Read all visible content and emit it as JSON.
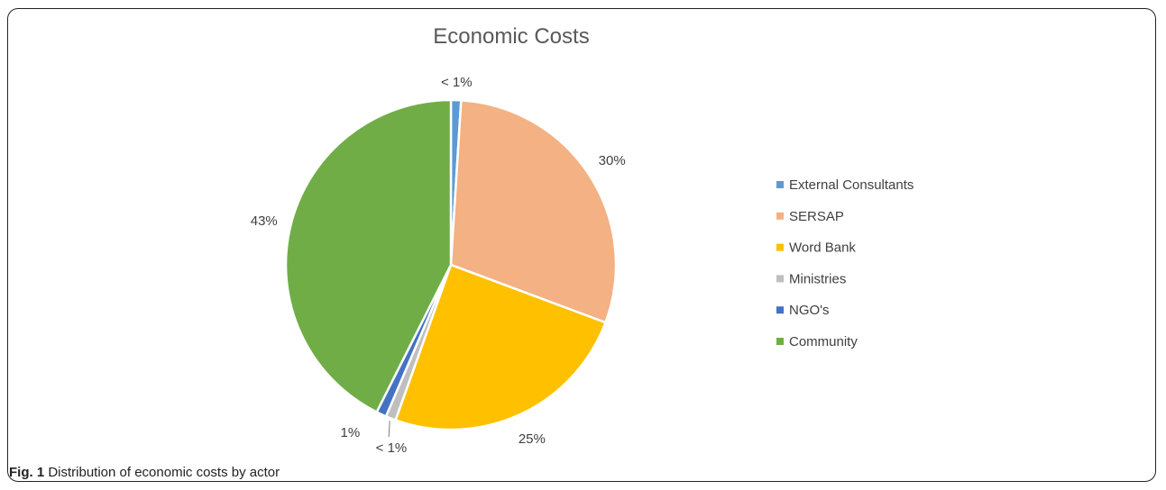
{
  "chart_data": {
    "type": "pie",
    "title": "Economic Costs",
    "legend_position": "right",
    "slices": [
      {
        "label": "External Consultants",
        "value": 1,
        "display": "< 1%",
        "color": "#5B9BD5"
      },
      {
        "label": "SERSAP",
        "value": 30,
        "display": "30%",
        "color": "#F4B183"
      },
      {
        "label": "Word Bank",
        "value": 25,
        "display": "25%",
        "color": "#FFC000"
      },
      {
        "label": "Ministries",
        "value": 1,
        "display": "< 1%",
        "color": "#BFBFBF"
      },
      {
        "label": "NGO's",
        "value": 1,
        "display": "1%",
        "color": "#4472C4"
      },
      {
        "label": "Community",
        "value": 43,
        "display": "43%",
        "color": "#70AD47"
      }
    ]
  },
  "caption": {
    "label": "Fig. 1",
    "text": " Distribution of economic costs by actor"
  }
}
